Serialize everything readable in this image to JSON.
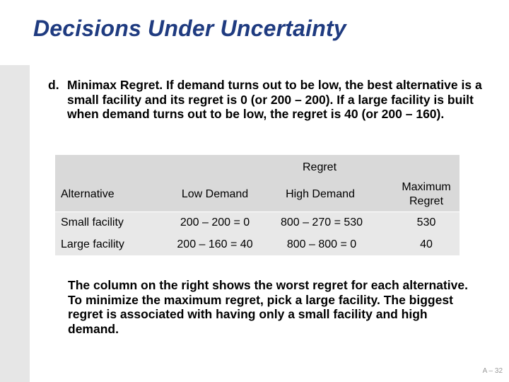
{
  "slide": {
    "title": "Decisions Under Uncertainty",
    "paragraph_d": {
      "label": "d.",
      "text": "Minimax Regret. If demand turns out to be low, the best alternative is a small facility and its regret is 0 (or 200 – 200). If a large facility is built when demand turns out to be low, the regret is 40 (or 200 – 160)."
    },
    "table": {
      "group_header": "Regret",
      "headers": {
        "alternative": "Alternative",
        "low": "Low Demand",
        "high": "High Demand",
        "max_line1": "Maximum",
        "max_line2": "Regret"
      },
      "rows": [
        {
          "alternative": "Small facility",
          "low": "200 – 200 = 0",
          "high": "800 – 270 = 530",
          "max": "530"
        },
        {
          "alternative": "Large facility",
          "low": "200 – 160 = 40",
          "high": "800 – 800 = 0",
          "max": "40"
        }
      ]
    },
    "paragraph_bottom": "The column on the right shows the worst regret for each alternative. To minimize the maximum regret, pick a large facility. The biggest regret is associated with having only a small facility and high demand.",
    "page_number": "A – 32"
  },
  "colors": {
    "title": "#1f3b80",
    "side_bar": "#e6e6e6",
    "table_header_bg": "#d9d9d9",
    "table_body_bg": "#e8e8e8"
  }
}
